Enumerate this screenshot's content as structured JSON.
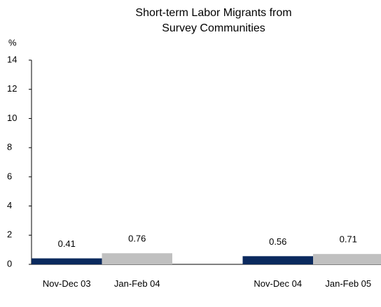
{
  "chart_data": {
    "type": "bar",
    "title": "Short-term Labor Migrants from Survey Communities",
    "ylabel": "%",
    "categories": [
      "Nov-Dec 03",
      "Jan-Feb 04",
      "Nov-Dec 04",
      "Jan-Feb 05"
    ],
    "values": [
      0.41,
      0.76,
      0.56,
      0.71
    ],
    "colors": [
      "#0b2a5e",
      "#c0c0c0",
      "#0b2a5e",
      "#c0c0c0"
    ],
    "ylim": [
      0,
      14
    ],
    "yticks": [
      0,
      2,
      4,
      6,
      8,
      10,
      12,
      14
    ],
    "grid": false
  }
}
